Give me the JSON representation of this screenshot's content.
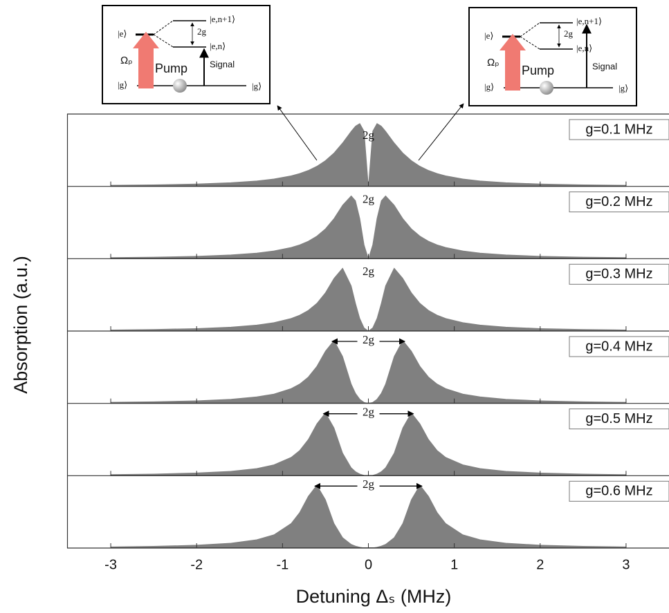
{
  "chart_data": {
    "type": "area",
    "x_label": "Detuning Δₛ (MHz)",
    "y_label": "Absorption (a.u.)",
    "color": "#808080",
    "x": [
      -3,
      -2.5,
      -2,
      -1.6,
      -1.3,
      -1.1,
      -0.9,
      -0.8,
      -0.7,
      -0.6,
      -0.5,
      -0.4,
      -0.3,
      -0.2,
      -0.15,
      -0.1,
      -0.05,
      0,
      0.05,
      0.1,
      0.15,
      0.2,
      0.3,
      0.4,
      0.5,
      0.6,
      0.7,
      0.8,
      0.9,
      1.1,
      1.3,
      1.6,
      2,
      2.5,
      3
    ],
    "xlim": [
      -3.5,
      3.5
    ],
    "xticks": [
      -3,
      -2,
      -1,
      0,
      1,
      2,
      3
    ],
    "ylim": [
      0,
      1.15
    ],
    "series": [
      {
        "name": "g=0.1 MHz",
        "annotation": "2g",
        "arrows": false,
        "values": [
          0.018,
          0.025,
          0.039,
          0.059,
          0.087,
          0.118,
          0.168,
          0.205,
          0.254,
          0.32,
          0.41,
          0.532,
          0.692,
          0.877,
          0.958,
          1,
          0.877,
          0,
          0.877,
          1,
          0.958,
          0.877,
          0.692,
          0.532,
          0.41,
          0.32,
          0.254,
          0.205,
          0.168,
          0.118,
          0.087,
          0.059,
          0.039,
          0.025,
          0.018
        ]
      },
      {
        "name": "g=0.2 MHz",
        "annotation": "2g",
        "arrows": false,
        "values": [
          0.018,
          0.025,
          0.039,
          0.061,
          0.09,
          0.124,
          0.179,
          0.221,
          0.279,
          0.36,
          0.476,
          0.64,
          0.852,
          1,
          0.922,
          0.64,
          0.221,
          0,
          0.221,
          0.64,
          0.922,
          1,
          0.852,
          0.64,
          0.476,
          0.36,
          0.279,
          0.221,
          0.179,
          0.124,
          0.09,
          0.061,
          0.039,
          0.025,
          0.018
        ]
      },
      {
        "name": "g=0.3 MHz",
        "annotation": "2g",
        "arrows": false,
        "values": [
          0.018,
          0.026,
          0.04,
          0.063,
          0.096,
          0.134,
          0.2,
          0.253,
          0.329,
          0.441,
          0.61,
          0.839,
          1,
          0.719,
          0.441,
          0.2,
          0.05,
          0,
          0.05,
          0.2,
          0.441,
          0.719,
          1,
          0.839,
          0.61,
          0.441,
          0.329,
          0.253,
          0.2,
          0.134,
          0.096,
          0.063,
          0.04,
          0.026,
          0.018
        ]
      },
      {
        "name": "g=0.4 MHz",
        "annotation": "2g",
        "arrows": true,
        "values": [
          0.018,
          0.026,
          0.042,
          0.066,
          0.104,
          0.149,
          0.235,
          0.308,
          0.419,
          0.59,
          0.832,
          1,
          0.746,
          0.308,
          0.16,
          0.066,
          0.016,
          0,
          0.016,
          0.066,
          0.16,
          0.308,
          0.746,
          1,
          0.832,
          0.59,
          0.419,
          0.308,
          0.235,
          0.149,
          0.104,
          0.066,
          0.042,
          0.026,
          0.018
        ]
      },
      {
        "name": "g=0.5 MHz",
        "annotation": "2g",
        "arrows": true,
        "values": [
          0.018,
          0.027,
          0.044,
          0.071,
          0.115,
          0.174,
          0.292,
          0.402,
          0.576,
          0.826,
          1,
          0.76,
          0.36,
          0.127,
          0.065,
          0.027,
          0.006,
          0,
          0.006,
          0.027,
          0.065,
          0.127,
          0.36,
          0.76,
          1,
          0.826,
          0.576,
          0.402,
          0.292,
          0.174,
          0.115,
          0.071,
          0.044,
          0.027,
          0.018
        ]
      },
      {
        "name": "g=0.6 MHz",
        "annotation": "2g",
        "arrows": true,
        "values": [
          0.019,
          0.028,
          0.046,
          0.078,
          0.133,
          0.211,
          0.39,
          0.566,
          0.823,
          1,
          0.768,
          0.39,
          0.165,
          0.059,
          0.031,
          0.013,
          0.003,
          0,
          0.003,
          0.013,
          0.031,
          0.059,
          0.165,
          0.39,
          0.768,
          1,
          0.823,
          0.566,
          0.39,
          0.211,
          0.133,
          0.078,
          0.046,
          0.028,
          0.019
        ]
      }
    ],
    "insets": [
      {
        "e": "|e⟩",
        "upper": "|e,n+1⟩",
        "lower": "|e,n⟩",
        "split": "2g",
        "rabi": "Ωₚ",
        "pump": "Pump",
        "signal": "Signal",
        "ground": "|g⟩",
        "ground_right": "|g⟩"
      },
      {
        "e": "|e⟩",
        "upper": "|e,n+1⟩",
        "lower": "|e,n⟩",
        "split": "2g",
        "rabi": "Ωₚ",
        "pump": "Pump",
        "signal": "Signal",
        "ground": "|g⟩",
        "ground_right": "|g⟩"
      }
    ]
  }
}
